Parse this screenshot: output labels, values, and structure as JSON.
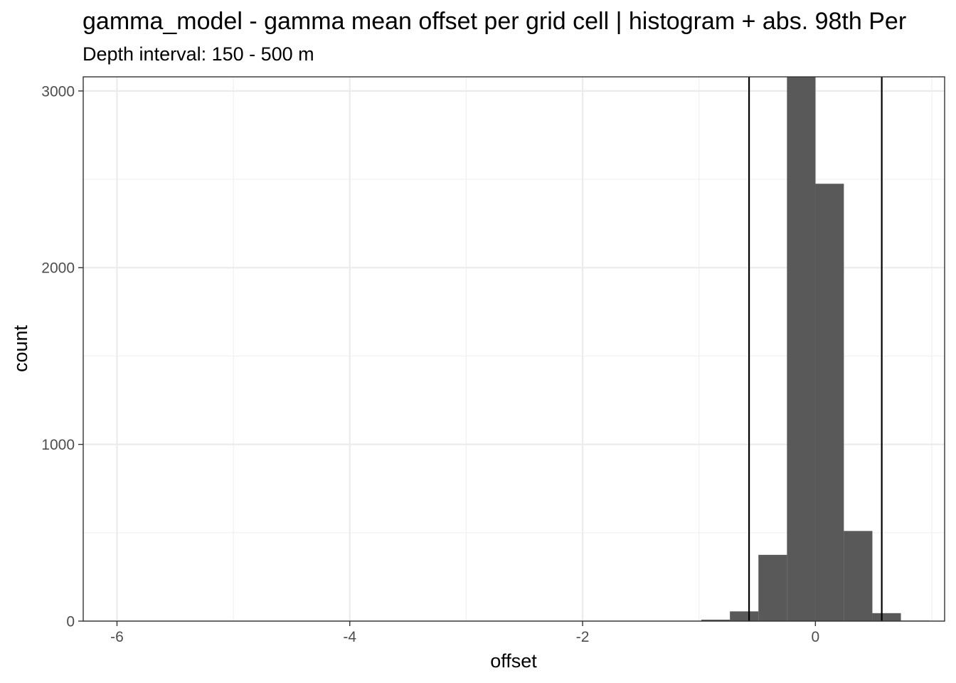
{
  "chart_data": {
    "type": "bar",
    "title": "gamma_model  -  gamma mean offset per grid cell | histogram + abs. 98th Per",
    "subtitle": "Depth interval: 150 - 500 m",
    "xlabel": "offset",
    "ylabel": "count",
    "xlim": [
      -6.29,
      1.11
    ],
    "ylim": [
      0,
      3080
    ],
    "x_ticks": [
      -6,
      -4,
      -2,
      0
    ],
    "x_tick_labels": [
      "-6",
      "-4",
      "-2",
      "0"
    ],
    "y_ticks": [
      0,
      1000,
      2000,
      3000
    ],
    "y_tick_labels": [
      "0",
      "1000",
      "2000",
      "3000"
    ],
    "x_minor_ticks": [
      -5,
      -3,
      -1,
      1
    ],
    "y_minor_ticks": [
      500,
      1500,
      2500
    ],
    "bin_width": 0.245,
    "bins": [
      {
        "x": -0.857,
        "count": 8
      },
      {
        "x": -0.612,
        "count": 55
      },
      {
        "x": -0.367,
        "count": 375
      },
      {
        "x": -0.122,
        "count": 3080
      },
      {
        "x": 0.122,
        "count": 2475
      },
      {
        "x": 0.367,
        "count": 510
      },
      {
        "x": 0.612,
        "count": 45
      },
      {
        "x": 0.857,
        "count": 3
      }
    ],
    "vlines": [
      -0.57,
      0.57
    ],
    "bar_color": "#595959",
    "grid": true,
    "legend": "none"
  }
}
